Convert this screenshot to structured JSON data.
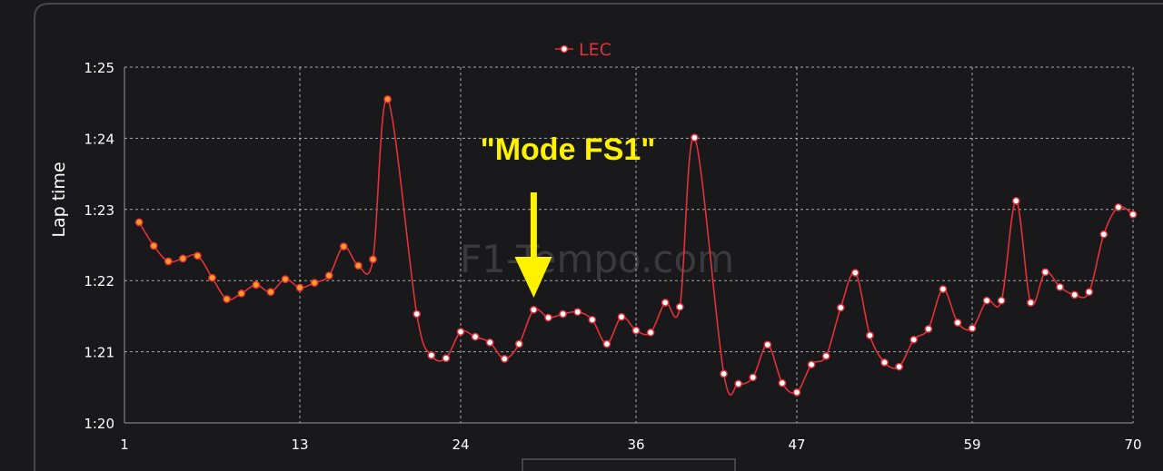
{
  "chart_data": {
    "type": "line",
    "ylabel": "Lap time",
    "xlabel": "",
    "x_ticks": [
      1,
      13,
      24,
      36,
      47,
      59,
      70
    ],
    "y_ticks": [
      "1:20",
      "1:21",
      "1:22",
      "1:23",
      "1:24",
      "1:25"
    ],
    "xlim": [
      1,
      70
    ],
    "ylim_seconds": [
      80,
      85
    ],
    "grid": true,
    "legend_position": "top-center",
    "watermark": "F1-Tempo.com",
    "annotation": {
      "text": "\"Mode FS1\"",
      "points_to_lap": 29
    },
    "series": [
      {
        "name": "LEC",
        "color": "#e4313a",
        "marker_colors": {
          "soft": "#ff9e26",
          "hard": "#ffffff"
        },
        "laps": [
          2,
          3,
          4,
          5,
          6,
          7,
          8,
          9,
          10,
          11,
          12,
          13,
          14,
          15,
          16,
          17,
          18,
          19,
          21,
          22,
          23,
          24,
          25,
          26,
          27,
          28,
          29,
          30,
          31,
          32,
          33,
          34,
          35,
          36,
          37,
          38,
          39,
          40,
          42,
          43,
          44,
          45,
          46,
          47,
          48,
          49,
          50,
          51,
          52,
          53,
          54,
          55,
          56,
          57,
          58,
          59,
          60,
          61,
          62,
          63,
          64,
          65,
          66,
          67,
          68,
          69,
          70
        ],
        "times_seconds": [
          82.82,
          82.49,
          82.27,
          82.31,
          82.35,
          82.04,
          81.74,
          81.82,
          81.94,
          81.84,
          82.02,
          81.9,
          81.97,
          82.07,
          82.48,
          82.21,
          82.3,
          84.55,
          81.53,
          80.95,
          80.91,
          81.28,
          81.21,
          81.13,
          80.9,
          81.11,
          81.59,
          81.48,
          81.53,
          81.56,
          81.45,
          81.11,
          81.49,
          81.3,
          81.27,
          81.69,
          81.63,
          84.01,
          80.69,
          80.55,
          80.64,
          81.1,
          80.56,
          80.43,
          80.82,
          80.94,
          81.62,
          82.11,
          81.23,
          80.85,
          80.79,
          81.17,
          81.32,
          81.88,
          81.41,
          81.33,
          81.72,
          81.72,
          83.12,
          81.69,
          82.12,
          81.91,
          81.8,
          81.84,
          82.65,
          83.03,
          82.93
        ],
        "tyre": [
          "soft",
          "soft",
          "soft",
          "soft",
          "soft",
          "soft",
          "soft",
          "soft",
          "soft",
          "soft",
          "soft",
          "soft",
          "soft",
          "soft",
          "soft",
          "soft",
          "soft",
          "soft",
          "hard",
          "hard",
          "hard",
          "hard",
          "hard",
          "hard",
          "hard",
          "hard",
          "hard",
          "hard",
          "hard",
          "hard",
          "hard",
          "hard",
          "hard",
          "hard",
          "hard",
          "hard",
          "hard",
          "hard",
          "hard",
          "hard",
          "hard",
          "hard",
          "hard",
          "hard",
          "hard",
          "hard",
          "hard",
          "hard",
          "hard",
          "hard",
          "hard",
          "hard",
          "hard",
          "hard",
          "hard",
          "hard",
          "hard",
          "hard",
          "hard",
          "hard",
          "hard",
          "hard",
          "hard",
          "hard",
          "hard",
          "hard",
          "hard"
        ]
      }
    ]
  }
}
